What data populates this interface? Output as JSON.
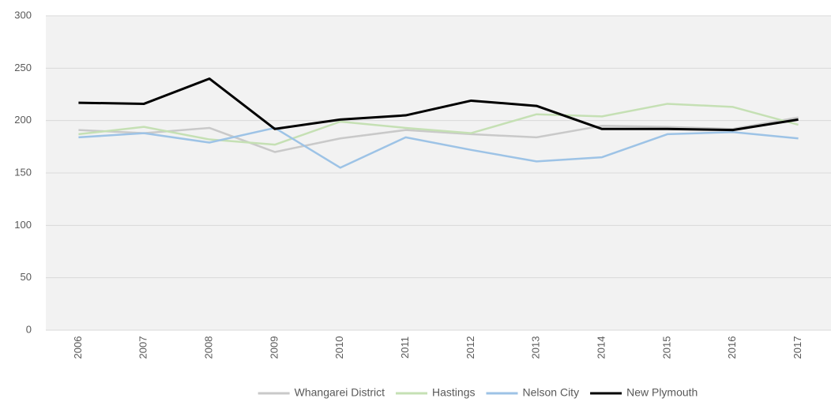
{
  "chart_data": {
    "type": "line",
    "categories": [
      "2006",
      "2007",
      "2008",
      "2009",
      "2010",
      "2011",
      "2012",
      "2013",
      "2014",
      "2015",
      "2016",
      "2017"
    ],
    "series": [
      {
        "name": "Whangarei District",
        "color": "#c9c9c9",
        "values": [
          191,
          188,
          193,
          170,
          183,
          191,
          187,
          184,
          195,
          194,
          192,
          203
        ]
      },
      {
        "name": "Hastings",
        "color": "#c5e0b4",
        "values": [
          187,
          194,
          182,
          177,
          199,
          193,
          188,
          206,
          204,
          216,
          213,
          196
        ]
      },
      {
        "name": "Nelson City",
        "color": "#9dc3e6",
        "values": [
          184,
          188,
          179,
          193,
          155,
          184,
          172,
          161,
          165,
          187,
          189,
          183
        ]
      },
      {
        "name": "New Plymouth",
        "color": "#000000",
        "values": [
          217,
          216,
          240,
          192,
          201,
          205,
          219,
          214,
          192,
          192,
          191,
          201
        ]
      }
    ],
    "ylim": [
      0,
      300
    ],
    "yticks": [
      0,
      50,
      100,
      150,
      200,
      250,
      300
    ],
    "grid": true,
    "legend": "bottom"
  }
}
